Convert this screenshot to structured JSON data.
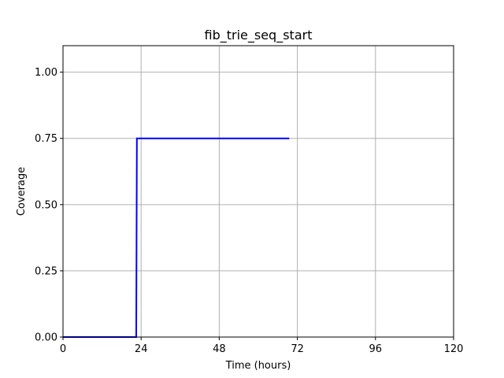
{
  "chart_data": {
    "type": "line",
    "title": "fib_trie_seq_start",
    "xlabel": "Time (hours)",
    "ylabel": "Coverage",
    "xlim": [
      0,
      120
    ],
    "ylim": [
      0,
      1.1
    ],
    "xticks": [
      0,
      24,
      48,
      72,
      96,
      120
    ],
    "yticks": [
      0.0,
      0.25,
      0.5,
      0.75,
      1.0
    ],
    "xtick_labels": [
      "0",
      "24",
      "48",
      "72",
      "96",
      "120"
    ],
    "ytick_labels": [
      "0.00",
      "0.25",
      "0.50",
      "0.75",
      "1.00"
    ],
    "grid": true,
    "series": [
      {
        "color": "#0000ff",
        "x": [
          0,
          22.5,
          22.7,
          69.5
        ],
        "y": [
          0.0,
          0.0,
          0.75,
          0.75
        ]
      }
    ]
  }
}
